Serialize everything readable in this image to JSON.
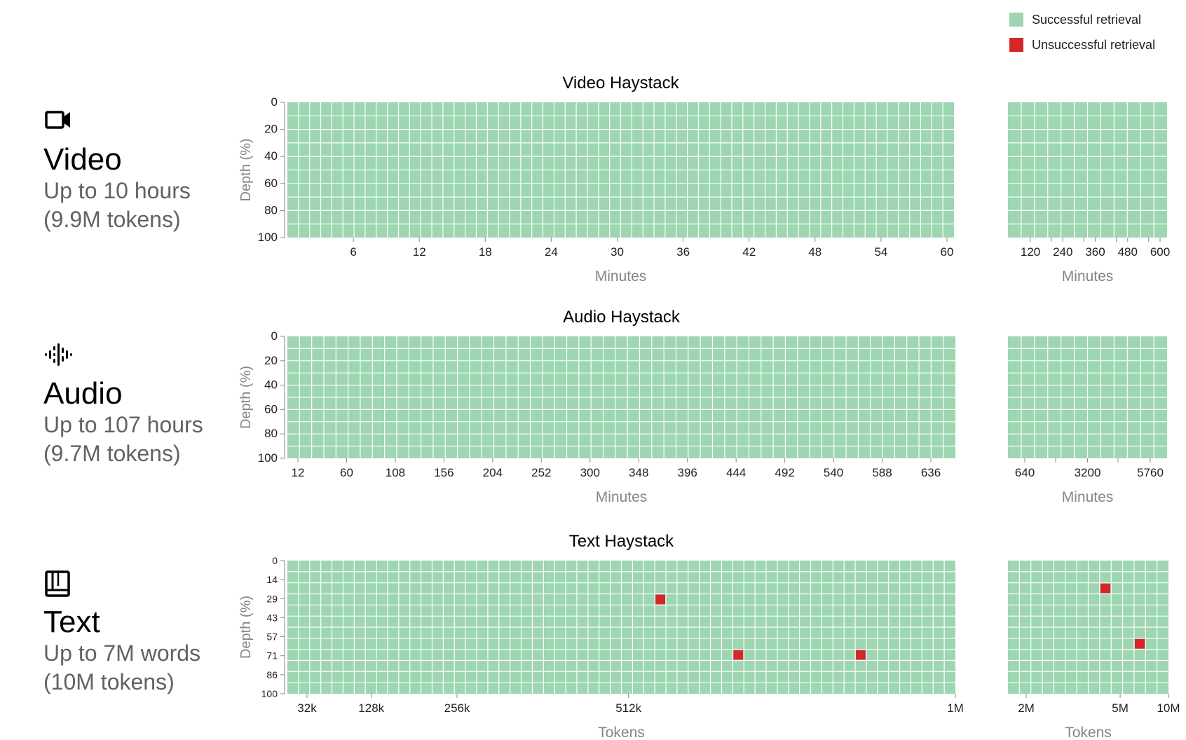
{
  "legend": {
    "success_label": "Successful retrieval",
    "fail_label": "Unsuccessful retrieval",
    "success_color": "#9dd6b0",
    "fail_color": "#d62728"
  },
  "rows": [
    {
      "icon": "video-camera-icon",
      "name": "Video",
      "desc1": "Up to 10 hours",
      "desc2": "(9.9M tokens)"
    },
    {
      "icon": "audio-waveform-icon",
      "name": "Audio",
      "desc1": "Up to 107 hours",
      "desc2": "(9.7M tokens)"
    },
    {
      "icon": "book-icon",
      "name": "Text",
      "desc1": "Up to 7M words",
      "desc2": "(10M tokens)"
    }
  ],
  "chart_data": [
    {
      "type": "heatmap",
      "title": "Video Haystack",
      "xlabel": "Minutes",
      "ylabel": "Depth (%)",
      "y_ticks": [
        "0",
        "20",
        "40",
        "60",
        "80",
        "100"
      ],
      "x_ticks": [
        "6",
        "12",
        "18",
        "24",
        "30",
        "36",
        "42",
        "48",
        "54",
        "60"
      ],
      "x_range": [
        0,
        60
      ],
      "cols": 60,
      "rows": 10,
      "result": "all cells successful retrieval",
      "failures": []
    },
    {
      "type": "heatmap",
      "title": "",
      "xlabel": "Minutes",
      "ylabel": "",
      "x_ticks": [
        "120",
        "240",
        "360",
        "480",
        "600"
      ],
      "x_range": [
        60,
        600
      ],
      "cols": 12,
      "rows": 10,
      "result": "all cells successful retrieval",
      "failures": []
    },
    {
      "type": "heatmap",
      "title": "Audio Haystack",
      "xlabel": "Minutes",
      "ylabel": "Depth (%)",
      "y_ticks": [
        "0",
        "20",
        "40",
        "60",
        "80",
        "100"
      ],
      "x_ticks": [
        "12",
        "60",
        "108",
        "156",
        "204",
        "252",
        "300",
        "348",
        "396",
        "444",
        "492",
        "540",
        "588",
        "636"
      ],
      "x_range": [
        0,
        660
      ],
      "cols": 55,
      "rows": 10,
      "result": "all cells successful retrieval",
      "failures": []
    },
    {
      "type": "heatmap",
      "title": "",
      "xlabel": "Minutes",
      "ylabel": "",
      "x_ticks": [
        "640",
        "3200",
        "5760"
      ],
      "x_range": [
        640,
        6400
      ],
      "cols": 12,
      "rows": 10,
      "result": "all cells successful retrieval",
      "failures": []
    },
    {
      "type": "heatmap",
      "title": "Text Haystack",
      "xlabel": "Tokens",
      "ylabel": "Depth (%)",
      "y_ticks": [
        "0",
        "14",
        "29",
        "43",
        "57",
        "71",
        "86",
        "100"
      ],
      "x_ticks": [
        "32k",
        "128k",
        "256k",
        "512k",
        "1M"
      ],
      "x_tick_values": [
        32000,
        128000,
        256000,
        512000,
        1000000
      ],
      "x_range": [
        0,
        1000000
      ],
      "cols": 60,
      "rows": 12,
      "result": "successful retrieval except failures",
      "failures": [
        {
          "tokens": 560000,
          "depth": 29
        },
        {
          "tokens": 667000,
          "depth": 71
        },
        {
          "tokens": 853000,
          "depth": 71
        }
      ]
    },
    {
      "type": "heatmap",
      "title": "",
      "xlabel": "Tokens",
      "ylabel": "",
      "x_ticks": [
        "2M",
        "5M",
        "10M"
      ],
      "x_tick_values": [
        2000000,
        5000000,
        10000000
      ],
      "x_range": [
        1000000,
        10000000
      ],
      "cols": 14,
      "rows": 12,
      "result": "successful retrieval except failures",
      "failures": [
        {
          "tokens": 3800000,
          "depth": 14
        },
        {
          "tokens": 6300000,
          "depth": 64
        }
      ]
    }
  ]
}
